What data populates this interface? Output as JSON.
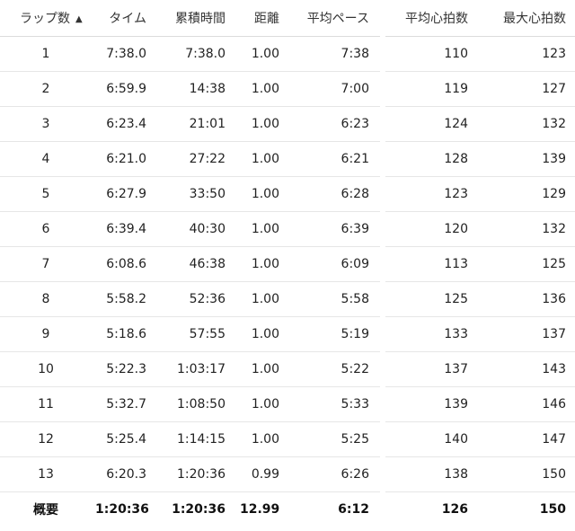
{
  "headers": {
    "lap": "ラップ数",
    "sort_icon": "▲",
    "time": "タイム",
    "cumulative": "累積時間",
    "distance": "距離",
    "avg_pace": "平均ペース",
    "avg_hr": "平均心拍数",
    "max_hr": "最大心拍数"
  },
  "rows": [
    {
      "lap": "1",
      "time": "7:38.0",
      "cumulative": "7:38.0",
      "distance": "1.00",
      "avg_pace": "7:38",
      "avg_hr": "110",
      "max_hr": "123"
    },
    {
      "lap": "2",
      "time": "6:59.9",
      "cumulative": "14:38",
      "distance": "1.00",
      "avg_pace": "7:00",
      "avg_hr": "119",
      "max_hr": "127"
    },
    {
      "lap": "3",
      "time": "6:23.4",
      "cumulative": "21:01",
      "distance": "1.00",
      "avg_pace": "6:23",
      "avg_hr": "124",
      "max_hr": "132"
    },
    {
      "lap": "4",
      "time": "6:21.0",
      "cumulative": "27:22",
      "distance": "1.00",
      "avg_pace": "6:21",
      "avg_hr": "128",
      "max_hr": "139"
    },
    {
      "lap": "5",
      "time": "6:27.9",
      "cumulative": "33:50",
      "distance": "1.00",
      "avg_pace": "6:28",
      "avg_hr": "123",
      "max_hr": "129"
    },
    {
      "lap": "6",
      "time": "6:39.4",
      "cumulative": "40:30",
      "distance": "1.00",
      "avg_pace": "6:39",
      "avg_hr": "120",
      "max_hr": "132"
    },
    {
      "lap": "7",
      "time": "6:08.6",
      "cumulative": "46:38",
      "distance": "1.00",
      "avg_pace": "6:09",
      "avg_hr": "113",
      "max_hr": "125"
    },
    {
      "lap": "8",
      "time": "5:58.2",
      "cumulative": "52:36",
      "distance": "1.00",
      "avg_pace": "5:58",
      "avg_hr": "125",
      "max_hr": "136"
    },
    {
      "lap": "9",
      "time": "5:18.6",
      "cumulative": "57:55",
      "distance": "1.00",
      "avg_pace": "5:19",
      "avg_hr": "133",
      "max_hr": "137"
    },
    {
      "lap": "10",
      "time": "5:22.3",
      "cumulative": "1:03:17",
      "distance": "1.00",
      "avg_pace": "5:22",
      "avg_hr": "137",
      "max_hr": "143"
    },
    {
      "lap": "11",
      "time": "5:32.7",
      "cumulative": "1:08:50",
      "distance": "1.00",
      "avg_pace": "5:33",
      "avg_hr": "139",
      "max_hr": "146"
    },
    {
      "lap": "12",
      "time": "5:25.4",
      "cumulative": "1:14:15",
      "distance": "1.00",
      "avg_pace": "5:25",
      "avg_hr": "140",
      "max_hr": "147"
    },
    {
      "lap": "13",
      "time": "6:20.3",
      "cumulative": "1:20:36",
      "distance": "0.99",
      "avg_pace": "6:26",
      "avg_hr": "138",
      "max_hr": "150"
    }
  ],
  "summary": {
    "label": "概要",
    "time": "1:20:36",
    "cumulative": "1:20:36",
    "distance": "12.99",
    "avg_pace": "6:12",
    "avg_hr": "126",
    "max_hr": "150"
  }
}
